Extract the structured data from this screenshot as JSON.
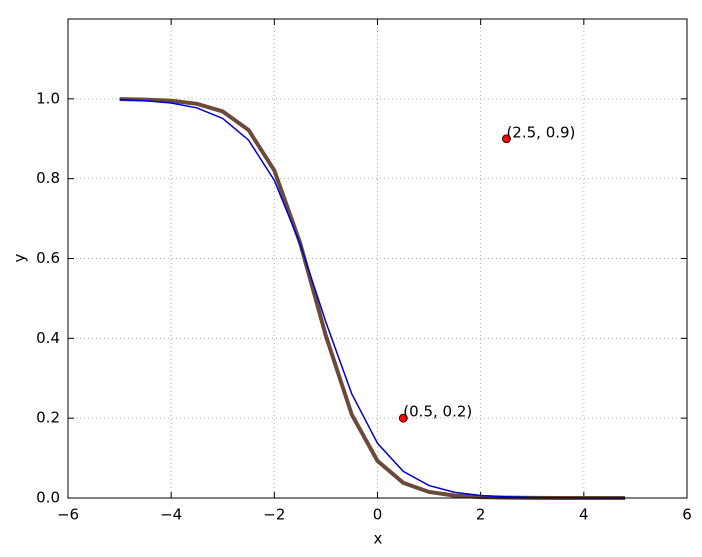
{
  "chart_data": {
    "type": "line",
    "x_label": "x",
    "y_label": "y",
    "x": [
      -5,
      -4.5,
      -4,
      -3.5,
      -3,
      -2.5,
      -2,
      -1.5,
      -1,
      -0.5,
      0,
      0.5,
      1,
      1.5,
      2,
      2.5,
      3,
      3.5,
      4,
      4.5,
      4.8
    ],
    "series": [
      {
        "color": "#6b4a3a",
        "values": [
          0.9993,
          0.9981,
          0.9951,
          0.9875,
          0.9683,
          0.922,
          0.8205,
          0.6388,
          0.4062,
          0.2092,
          0.0928,
          0.038,
          0.0151,
          0.0059,
          0.0023,
          0.0009,
          0.0003,
          0.0001,
          0.0001,
          0.0,
          0.0
        ]
      },
      {
        "color": "#0000cc",
        "values": [
          0.9979,
          0.9953,
          0.9896,
          0.9772,
          0.9508,
          0.8966,
          0.7958,
          0.6365,
          0.4403,
          0.2612,
          0.137,
          0.0666,
          0.0311,
          0.0142,
          0.0064,
          0.0029,
          0.0013,
          0.0006,
          0.0003,
          0.0001,
          0.0001
        ]
      }
    ],
    "points": [
      {
        "x": 0.5,
        "y": 0.2,
        "label": "(0.5, 0.2)",
        "color": "#ff0000"
      },
      {
        "x": 2.5,
        "y": 0.9,
        "label": "(2.5, 0.9)",
        "color": "#ff0000"
      }
    ],
    "xlim": [
      -6,
      6
    ],
    "xticks": [
      {
        "value": -6,
        "label": "−6"
      },
      {
        "value": -4,
        "label": "−4"
      },
      {
        "value": -2,
        "label": "−2"
      },
      0,
      2,
      4,
      6
    ],
    "ylim": [
      0,
      1.2
    ],
    "yticks": [
      {
        "value": 0,
        "label": "0.0"
      },
      0.2,
      0.4,
      0.6,
      0.8,
      {
        "value": 1,
        "label": "1.0"
      }
    ],
    "grid": true
  }
}
